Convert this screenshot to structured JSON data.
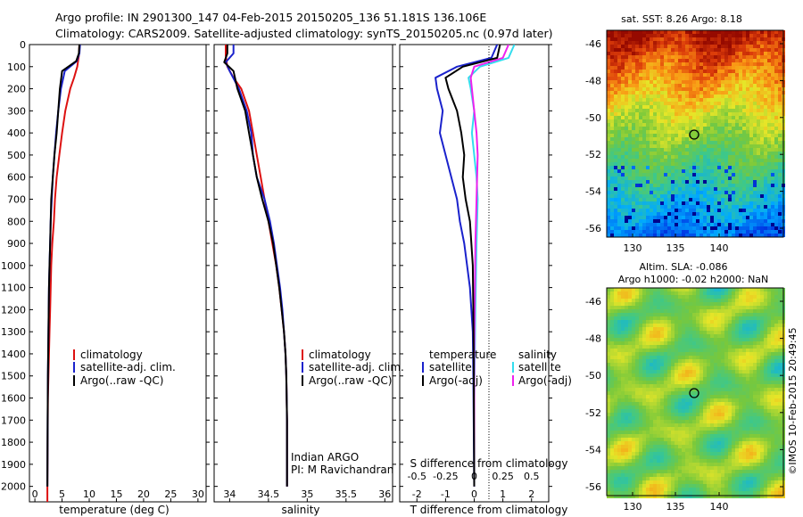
{
  "header": {
    "title_line1": "Argo profile: IN 2901300_147 04-Feb-2015 20150205_136 51.181S 136.106E",
    "title_line2": "Climatology: CARS2009. Satellite-adjusted climatology: synTS_20150205.nc (0.97d later)"
  },
  "colors": {
    "climatology": "#dd1111",
    "satellite": "#1a22cc",
    "argo": "#000000",
    "satellite_salinity": "#33ddee",
    "argo_salinity": "#ee22ee"
  },
  "depth_ticks": [
    0,
    100,
    200,
    300,
    400,
    500,
    600,
    700,
    800,
    900,
    1000,
    1100,
    1200,
    1300,
    1400,
    1500,
    1600,
    1700,
    1800,
    1900,
    2000
  ],
  "depth_range": [
    0,
    2070
  ],
  "panels": {
    "temperature": {
      "xlabel": "temperature (deg C)",
      "xlim": [
        -1,
        31.5
      ],
      "xticks": [
        0,
        5,
        10,
        15,
        20,
        25,
        30
      ],
      "legend": [
        "climatology",
        "satellite-adj. clim.",
        "Argo(..raw -QC)"
      ]
    },
    "salinity": {
      "xlabel": "salinity",
      "xlim": [
        33.8,
        36.1
      ],
      "xticks": [
        "34",
        "34.5",
        "35",
        "35.5",
        "36"
      ],
      "legend": [
        "climatology",
        "satellite-adj. clim.",
        "Argo(..raw -QC)"
      ],
      "credit1": "Indian ARGO",
      "credit2": "PI: M Ravichandran"
    },
    "difference": {
      "xlabel": "T difference from climatology",
      "top_label": "S difference from climatology",
      "t_xticks": [
        "-2",
        "-1",
        "0",
        "1",
        "2"
      ],
      "s_xticks": [
        "-0.5",
        "-0.25",
        "0",
        "0.25",
        "0.5"
      ],
      "legend_temp_title": "temperature",
      "legend_sal_title": "salinity",
      "legend_temp": [
        "satellite",
        "Argo(-adj)"
      ],
      "legend_sal": [
        "satellite",
        "Argo(-adj)"
      ]
    },
    "sst_map": {
      "title": "sat. SST: 8.26 Argo: 8.18",
      "xticks": [
        "130",
        "135",
        "140"
      ],
      "yticks": [
        "-46",
        "-48",
        "-50",
        "-52",
        "-54",
        "-56"
      ]
    },
    "sla_map": {
      "title1": "Altim. SLA: -0.086",
      "title2": "Argo h1000: -0.02 h2000: NaN",
      "xticks": [
        "130",
        "135",
        "140"
      ],
      "yticks": [
        "-46",
        "-48",
        "-50",
        "-52",
        "-54",
        "-56"
      ]
    }
  },
  "watermark": "©IMOS 10-Feb-2015 20:49:45",
  "chart_data": [
    {
      "type": "line",
      "xlabel": "temperature (deg C)",
      "ylabel": "",
      "xlim": [
        -1,
        31.5
      ],
      "ylim": [
        2070,
        0
      ],
      "series": [
        {
          "name": "climatology",
          "x": [
            8.2,
            8.1,
            7.8,
            7.2,
            6.5,
            5.6,
            5.0,
            4.5,
            4.0,
            3.7,
            3.5,
            3.2,
            3.0,
            2.9,
            2.8,
            2.7,
            2.6,
            2.5,
            2.4,
            2.35,
            2.3,
            2.3
          ],
          "y": [
            0,
            50,
            100,
            150,
            200,
            300,
            400,
            500,
            600,
            700,
            800,
            900,
            1000,
            1100,
            1200,
            1300,
            1400,
            1500,
            1600,
            1800,
            2000,
            2070
          ]
        },
        {
          "name": "satellite-adj. clim.",
          "x": [
            8.3,
            8.2,
            7.7,
            5.5,
            4.8,
            4.3,
            3.9,
            3.6,
            3.3,
            3.1,
            2.9,
            2.8,
            2.7,
            2.6,
            2.55,
            2.5,
            2.45,
            2.4,
            2.35,
            2.3
          ],
          "y": [
            0,
            40,
            75,
            120,
            200,
            300,
            400,
            500,
            600,
            700,
            800,
            900,
            1000,
            1100,
            1200,
            1300,
            1400,
            1500,
            1700,
            2000
          ]
        },
        {
          "name": "Argo(..raw -QC)",
          "x": [
            8.2,
            8.1,
            7.6,
            5.0,
            4.6,
            4.3,
            4.0,
            3.6,
            3.3,
            3.0,
            2.9,
            2.8,
            2.7,
            2.6,
            2.55,
            2.5,
            2.45,
            2.4,
            2.35,
            2.3
          ],
          "y": [
            0,
            40,
            75,
            120,
            200,
            300,
            400,
            500,
            600,
            700,
            800,
            900,
            1000,
            1100,
            1200,
            1300,
            1400,
            1500,
            1700,
            2000
          ]
        }
      ]
    },
    {
      "type": "line",
      "xlabel": "salinity",
      "ylabel": "",
      "xlim": [
        33.8,
        36.1
      ],
      "ylim": [
        2070,
        0
      ],
      "series": [
        {
          "name": "climatology",
          "x": [
            33.95,
            33.95,
            33.97,
            34.05,
            34.15,
            34.25,
            34.3,
            34.35,
            34.4,
            34.45,
            34.5,
            34.55,
            34.6,
            34.64,
            34.67,
            34.7,
            34.72,
            34.73,
            34.74,
            34.74
          ],
          "y": [
            0,
            50,
            100,
            150,
            200,
            300,
            400,
            500,
            600,
            700,
            800,
            900,
            1000,
            1100,
            1200,
            1300,
            1400,
            1500,
            1700,
            2000
          ]
        },
        {
          "name": "satellite-adj. clim.",
          "x": [
            34.05,
            34.05,
            33.95,
            34.0,
            34.12,
            34.22,
            34.28,
            34.3,
            34.35,
            34.45,
            34.52,
            34.57,
            34.61,
            34.65,
            34.68,
            34.7,
            34.72,
            34.73,
            34.74,
            34.74
          ],
          "y": [
            0,
            40,
            80,
            120,
            200,
            300,
            400,
            500,
            600,
            700,
            800,
            900,
            1000,
            1100,
            1200,
            1300,
            1400,
            1500,
            1700,
            2000
          ]
        },
        {
          "name": "Argo(..raw -QC)",
          "x": [
            33.97,
            33.97,
            33.93,
            34.05,
            34.1,
            34.2,
            34.25,
            34.3,
            34.35,
            34.42,
            34.5,
            34.56,
            34.6,
            34.64,
            34.67,
            34.7,
            34.72,
            34.73,
            34.74,
            34.74
          ],
          "y": [
            0,
            40,
            80,
            120,
            200,
            300,
            400,
            500,
            600,
            700,
            800,
            900,
            1000,
            1100,
            1200,
            1300,
            1400,
            1500,
            1700,
            2000
          ]
        }
      ]
    },
    {
      "type": "line",
      "xlabel": "T difference from climatology",
      "ylabel": "",
      "xlim": [
        -2.6,
        2.6
      ],
      "ylim": [
        2070,
        0
      ],
      "series": [
        {
          "name": "satellite",
          "x": [
            0.8,
            0.6,
            -0.6,
            -1.35,
            -1.3,
            -1.1,
            -1.2,
            -1.0,
            -0.8,
            -0.6,
            -0.5,
            -0.35,
            -0.25,
            -0.15,
            -0.1,
            -0.05,
            -0.03,
            -0.02,
            0.0
          ],
          "y": [
            0,
            60,
            100,
            150,
            200,
            300,
            400,
            500,
            600,
            700,
            800,
            900,
            1000,
            1100,
            1200,
            1300,
            1500,
            1700,
            2000
          ]
        },
        {
          "name": "Argo(-adj)",
          "x": [
            0.9,
            0.8,
            -0.4,
            -1.0,
            -0.9,
            -0.6,
            -0.45,
            -0.35,
            -0.4,
            -0.3,
            -0.15,
            -0.1,
            -0.05,
            -0.03,
            -0.02,
            -0.01,
            0.0
          ],
          "y": [
            0,
            60,
            100,
            150,
            200,
            300,
            400,
            500,
            600,
            700,
            800,
            900,
            1000,
            1200,
            1400,
            1700,
            2000
          ]
        }
      ]
    },
    {
      "type": "line",
      "xlabel": "S difference from climatology",
      "ylabel": "",
      "xlim": [
        -0.65,
        0.65
      ],
      "ylim": [
        2070,
        0
      ],
      "series": [
        {
          "name": "satellite",
          "x": [
            0.35,
            0.3,
            0.05,
            -0.05,
            -0.03,
            0.0,
            -0.02,
            0.0,
            0.02,
            0.03,
            0.02,
            0.01,
            0.0,
            0.0
          ],
          "y": [
            0,
            60,
            100,
            150,
            200,
            300,
            400,
            500,
            600,
            700,
            900,
            1200,
            1600,
            2000
          ]
        },
        {
          "name": "Argo(-adj)",
          "x": [
            0.3,
            0.25,
            0.0,
            -0.03,
            -0.02,
            0.0,
            0.02,
            0.03,
            0.02,
            0.01,
            0.0,
            0.0
          ],
          "y": [
            0,
            60,
            100,
            150,
            200,
            300,
            400,
            500,
            700,
            900,
            1400,
            2000
          ]
        }
      ]
    }
  ]
}
